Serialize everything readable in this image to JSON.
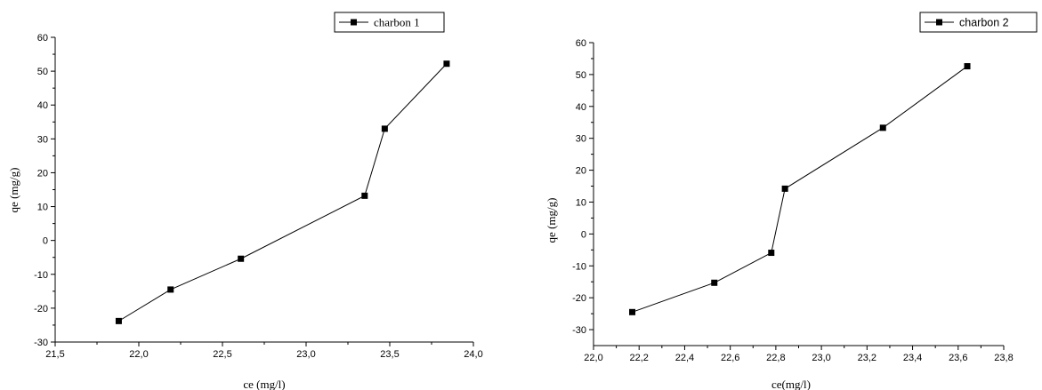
{
  "chart_data": [
    {
      "type": "line",
      "xlabel": "ce (mg/l)",
      "ylabel": "qe (mg/g)",
      "xlim": [
        21.5,
        24.0
      ],
      "ylim": [
        -30,
        60
      ],
      "x_ticks": [
        "21,5",
        "22,0",
        "22,5",
        "23,0",
        "23,5",
        "24,0"
      ],
      "y_ticks": [
        "-30",
        "-20",
        "-10",
        "0",
        "10",
        "20",
        "30",
        "40",
        "50",
        "60"
      ],
      "grid": false,
      "legend_position": "top-right",
      "series": [
        {
          "name": "charbon 1",
          "marker": "square",
          "color": "#000000",
          "x": [
            21.88,
            22.19,
            22.61,
            23.35,
            23.47,
            23.84
          ],
          "y": [
            -23.8,
            -14.5,
            -5.4,
            13.2,
            33.0,
            52.2
          ]
        }
      ]
    },
    {
      "type": "line",
      "xlabel": "ce(mg/l)",
      "ylabel": "qe (mg/g)",
      "xlim": [
        22.0,
        23.8
      ],
      "ylim": [
        -35,
        60
      ],
      "x_ticks": [
        "22,0",
        "22,2",
        "22,4",
        "22,6",
        "22,8",
        "23,0",
        "23,2",
        "23,4",
        "23,6",
        "23,8"
      ],
      "y_ticks": [
        "-30",
        "-20",
        "-10",
        "0",
        "10",
        "20",
        "30",
        "40",
        "50",
        "60"
      ],
      "grid": false,
      "legend_position": "top-right",
      "series": [
        {
          "name": "charbon 2",
          "marker": "square",
          "color": "#000000",
          "x": [
            22.17,
            22.53,
            22.78,
            22.84,
            23.27,
            23.64
          ],
          "y": [
            -24.5,
            -15.3,
            -5.9,
            14.2,
            33.3,
            52.6
          ]
        }
      ]
    }
  ]
}
